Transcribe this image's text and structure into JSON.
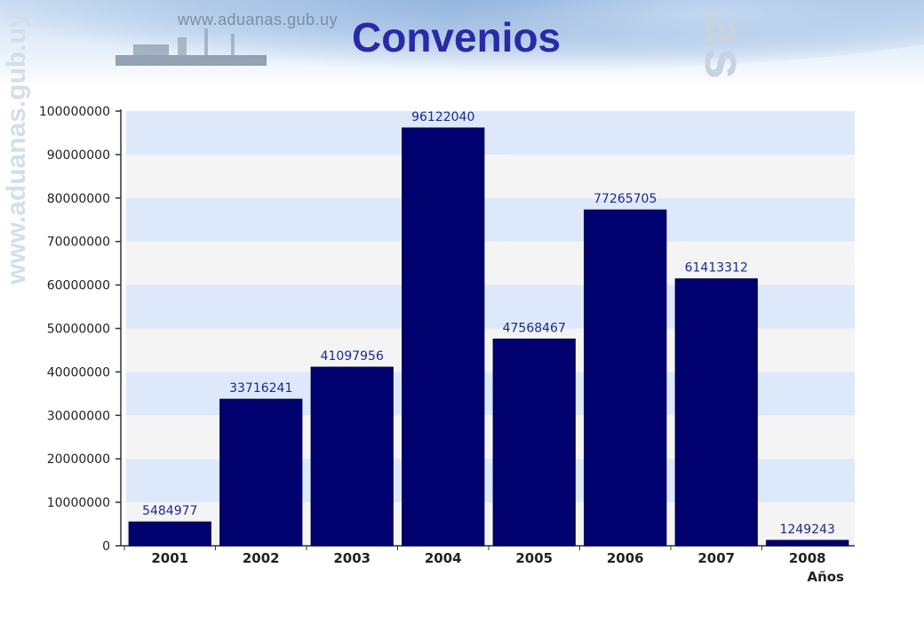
{
  "header": {
    "watermark_url": "www.aduanas.gub.uy",
    "watermark_brand": "as",
    "side_watermark": "www.aduanas.gub.uy"
  },
  "colors": {
    "title": "#2a2aa8",
    "bar": "#00006e",
    "band_blue": "#dde8fb",
    "band_gray": "#f4f4f4"
  },
  "chart_data": {
    "type": "bar",
    "title": "Convenios",
    "xlabel": "Años",
    "ylabel": "",
    "categories": [
      "2001",
      "2002",
      "2003",
      "2004",
      "2005",
      "2006",
      "2007",
      "2008"
    ],
    "values": [
      5484977,
      33716241,
      41097956,
      96122040,
      47568467,
      77265705,
      61413312,
      1249243
    ],
    "ylim": [
      0,
      100000000
    ],
    "yticks": [
      0,
      10000000,
      20000000,
      30000000,
      40000000,
      50000000,
      60000000,
      70000000,
      80000000,
      90000000,
      100000000
    ],
    "data_labels": true,
    "grid": "alternating horizontal bands"
  }
}
